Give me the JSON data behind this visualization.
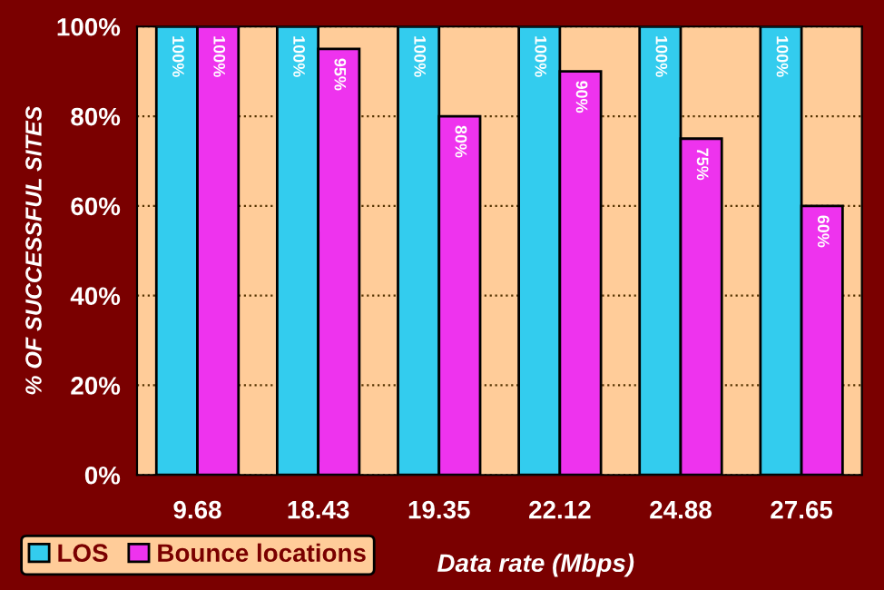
{
  "chart_data": {
    "type": "bar",
    "xlabel": "Data rate (Mbps)",
    "ylabel": "% OF SUCCESSFUL SITES",
    "categories": [
      "9.68",
      "18.43",
      "19.35",
      "22.12",
      "24.88",
      "27.65"
    ],
    "series": [
      {
        "name": "LOS",
        "color": "#33ccee",
        "values": [
          100,
          100,
          100,
          100,
          100,
          100
        ],
        "value_labels": [
          "100%",
          "100%",
          "100%",
          "100%",
          "100%",
          "100%"
        ]
      },
      {
        "name": "Bounce locations",
        "color": "#ee33ee",
        "values": [
          100,
          95,
          80,
          90,
          75,
          60
        ],
        "value_labels": [
          "100%",
          "95%",
          "80%",
          "90%",
          "75%",
          "60%"
        ]
      }
    ],
    "ylim": [
      0,
      100
    ],
    "yticks": [
      {
        "value": 0,
        "label": "0%"
      },
      {
        "value": 20,
        "label": "20%"
      },
      {
        "value": 40,
        "label": "40%"
      },
      {
        "value": 60,
        "label": "60%"
      },
      {
        "value": 80,
        "label": "80%"
      },
      {
        "value": 100,
        "label": "100%"
      }
    ],
    "grid": "y",
    "legend": "bottom left"
  }
}
